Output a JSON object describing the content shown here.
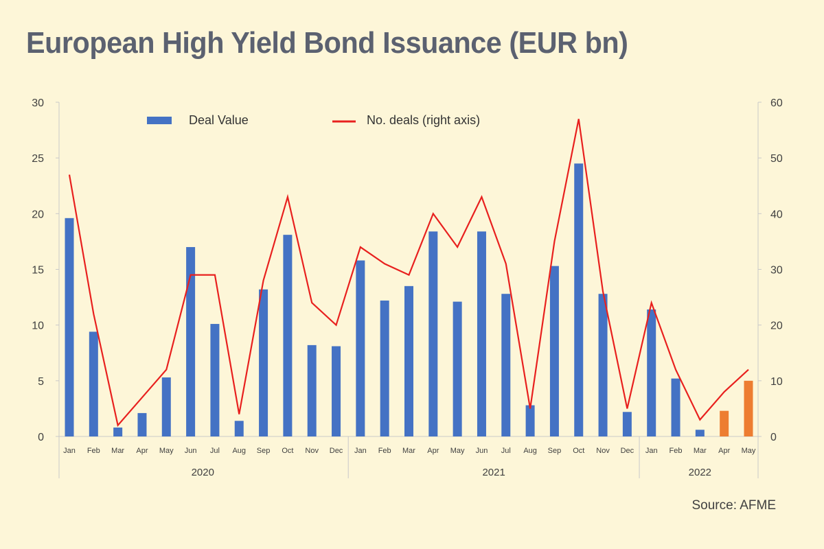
{
  "title": "European High Yield Bond Issuance (EUR bn)",
  "source": "Source: AFME",
  "chart_data": {
    "type": "bar",
    "months": [
      "Jan",
      "Feb",
      "Mar",
      "Apr",
      "May",
      "Jun",
      "Jul",
      "Aug",
      "Sep",
      "Oct",
      "Nov",
      "Dec",
      "Jan",
      "Feb",
      "Mar",
      "Apr",
      "May",
      "Jun",
      "Jul",
      "Aug",
      "Sep",
      "Oct",
      "Nov",
      "Dec",
      "Jan",
      "Feb",
      "Mar",
      "Apr",
      "May"
    ],
    "years": [
      {
        "label": "2020",
        "count": 12
      },
      {
        "label": "2021",
        "count": 12
      },
      {
        "label": "2022",
        "count": 5
      }
    ],
    "series": [
      {
        "name": "Deal Value",
        "type": "bar",
        "axis": "left",
        "color": "#4472c4",
        "values": [
          19.6,
          9.4,
          0.8,
          2.1,
          5.3,
          17.0,
          10.1,
          1.4,
          13.2,
          18.1,
          8.2,
          8.1,
          15.8,
          12.2,
          13.5,
          18.4,
          12.1,
          18.4,
          12.8,
          2.8,
          15.3,
          24.5,
          12.8,
          2.2,
          11.4,
          5.2,
          0.6,
          2.3,
          5.0
        ],
        "highlight_from_index": 27,
        "highlight_color": "#ed7d31"
      },
      {
        "name": "No. deals (right axis)",
        "type": "line",
        "axis": "right",
        "color": "#e8201e",
        "values": [
          47,
          22,
          2,
          7,
          12,
          29,
          29,
          4,
          28,
          43,
          24,
          20,
          34,
          31,
          29,
          40,
          34,
          43,
          31,
          5,
          35,
          57,
          26,
          5,
          24,
          12,
          3,
          8,
          12
        ]
      }
    ],
    "y_left": {
      "min": 0,
      "max": 30,
      "ticks": [
        0,
        5,
        10,
        15,
        20,
        25,
        30
      ]
    },
    "y_right": {
      "min": 0,
      "max": 60,
      "ticks": [
        0,
        10,
        20,
        30,
        40,
        50,
        60
      ]
    },
    "legend_position": "top",
    "grid": false
  }
}
